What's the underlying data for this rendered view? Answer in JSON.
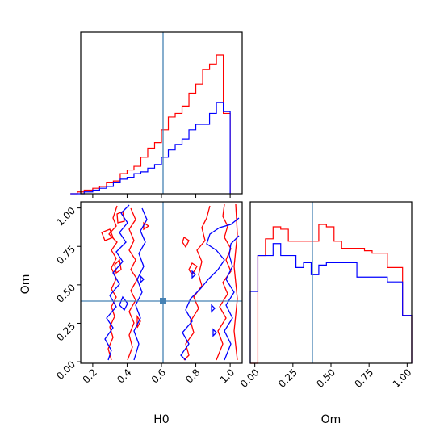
{
  "chart_data": {
    "type": "corner",
    "parameters": [
      "H0",
      "Om"
    ],
    "truth": {
      "H0": 0.6,
      "Om": 0.39
    },
    "truth_color": "#4682b4",
    "series": [
      {
        "color": "#ff0000"
      },
      {
        "color": "#0000ff"
      }
    ],
    "panels": {
      "h0_hist": {
        "type": "histogram",
        "xlim": [
          0.13,
          1.07
        ],
        "bin_edges": [
          0.07,
          0.11,
          0.15,
          0.2,
          0.24,
          0.28,
          0.32,
          0.36,
          0.4,
          0.44,
          0.48,
          0.52,
          0.56,
          0.6,
          0.64,
          0.68,
          0.72,
          0.76,
          0.8,
          0.84,
          0.88,
          0.92,
          0.96,
          1.0
        ],
        "counts": [
          [
            0,
            1,
            2,
            3,
            4,
            6,
            7,
            11,
            13,
            15,
            20,
            25,
            28,
            35,
            42,
            44,
            48,
            55,
            60,
            68,
            71,
            76,
            44
          ],
          [
            0,
            0,
            1,
            2,
            3,
            4,
            6,
            8,
            9,
            11,
            12,
            14,
            16,
            20,
            24,
            27,
            30,
            35,
            38,
            38,
            44,
            50,
            45
          ]
        ]
      },
      "joint": {
        "type": "contour",
        "xlabel": "H0",
        "ylabel": "Om",
        "xlim": [
          0.13,
          1.07
        ],
        "ylim": [
          -0.01,
          1.04
        ],
        "xticks": [
          "0.2",
          "0.4",
          "0.6",
          "0.8",
          "1.0"
        ],
        "yticks": [
          "0.00",
          "0.25",
          "0.50",
          "0.75",
          "1.00"
        ]
      },
      "om_hist": {
        "type": "histogram",
        "xlabel": "Om",
        "xlim": [
          -0.03,
          1.03
        ],
        "xticks": [
          "0.00",
          "0.25",
          "0.50",
          "0.75",
          "1.00"
        ],
        "bin_edges": [
          -0.03,
          0.02,
          0.07,
          0.12,
          0.17,
          0.22,
          0.27,
          0.32,
          0.37,
          0.42,
          0.47,
          0.52,
          0.57,
          0.62,
          0.67,
          0.72,
          0.77,
          0.82,
          0.87,
          0.92,
          0.97,
          1.03
        ],
        "counts": [
          [
            0,
            45,
            52,
            57,
            56,
            51,
            51,
            51,
            51,
            58,
            57,
            51,
            48,
            48,
            48,
            47,
            46,
            46,
            40,
            40,
            20
          ],
          [
            30,
            45,
            45,
            50,
            45,
            45,
            40,
            42,
            37,
            41,
            42,
            42,
            42,
            42,
            36,
            36,
            36,
            36,
            34,
            34,
            20
          ]
        ]
      }
    }
  }
}
